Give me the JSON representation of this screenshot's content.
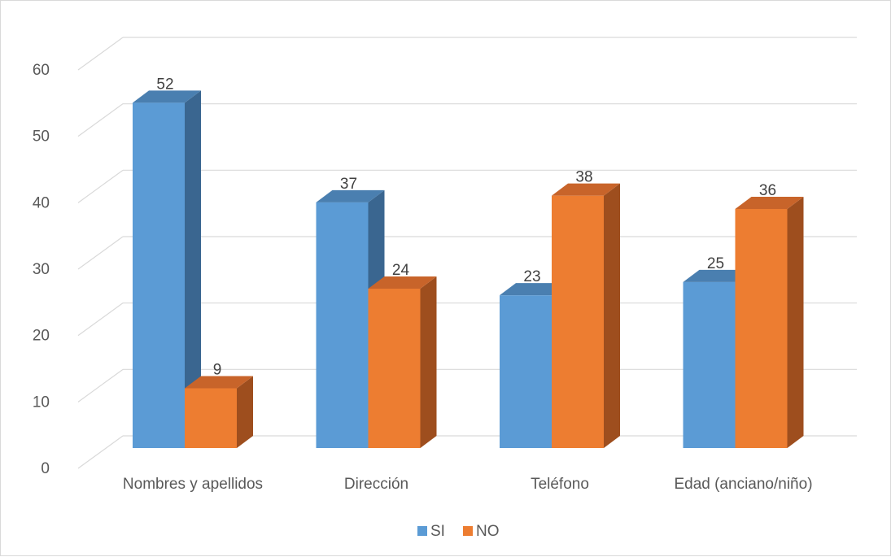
{
  "chart_data": {
    "type": "bar",
    "style": "3d-clustered-column",
    "categories": [
      "Nombres y apellidos",
      "Dirección",
      "Teléfono",
      "Edad (anciano/niño)"
    ],
    "series": [
      {
        "name": "SI",
        "values": [
          52,
          37,
          23,
          25
        ],
        "color": "#5b9bd5",
        "top_color": "#4a7fb0",
        "side_color": "#3a6690"
      },
      {
        "name": "NO",
        "values": [
          9,
          24,
          38,
          36
        ],
        "color": "#ed7d31",
        "top_color": "#c8642a",
        "side_color": "#9e4e1e"
      }
    ],
    "ylim": [
      0,
      60
    ],
    "yticks": [
      0,
      10,
      20,
      30,
      40,
      50,
      60
    ],
    "grid": true,
    "legend": "bottom-center",
    "data_labels": true
  }
}
